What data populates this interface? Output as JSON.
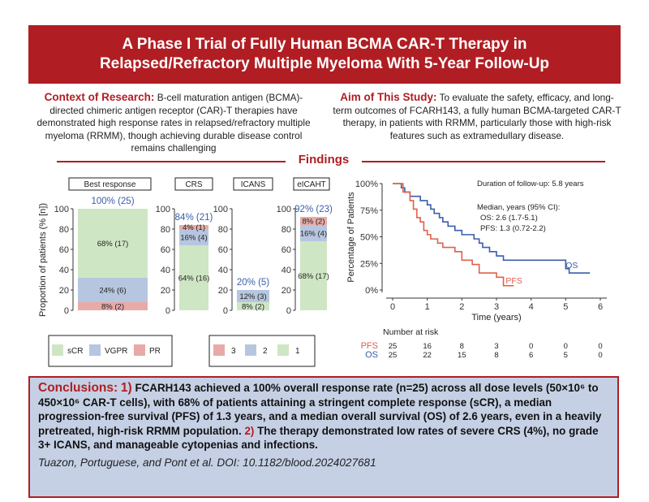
{
  "title": {
    "line1": "A Phase I Trial of Fully Human BCMA CAR-T Therapy in",
    "line2": "Relapsed/Refractory Multiple Myeloma With 5-Year Follow-Up"
  },
  "context": {
    "heading": "Context of Research:",
    "body": "B-cell maturation antigen (BCMA)-directed chimeric antigen receptor (CAR)-T therapies have demonstrated high response rates in relapsed/refractory multiple myeloma (RRMM), though achieving durable disease control remains challenging"
  },
  "aim": {
    "heading": "Aim of This Study:",
    "body": "To evaluate the safety, efficacy, and long-term outcomes of FCARH143, a fully human BCMA-targeted CAR-T therapy, in patients with RRMM, particularly those with high-risk features such as extramedullary disease."
  },
  "findings_label": "Findings",
  "colors": {
    "banner": "#b01e23",
    "scr": "#cfe6c4",
    "vgpr": "#b7c6e0",
    "pr": "#e8aaa6",
    "g3": "#e8aaa6",
    "g2": "#b7c6e0",
    "g1": "#cfe6c4",
    "os": "#3a5ea8",
    "pfs": "#e0604a",
    "conclusion_bg": "#c5d0e4"
  },
  "chart_data": [
    {
      "type": "bar",
      "title": "",
      "ylabel": "Proportion of patients (% [n])",
      "ylim": [
        0,
        100
      ],
      "yticks": [
        "0",
        "20",
        "40",
        "60",
        "80",
        "100"
      ],
      "panels": [
        {
          "strip": "Best response",
          "total_label": "100% (25)",
          "segments": [
            {
              "name": "PR",
              "value": 8,
              "label": "8% (2)"
            },
            {
              "name": "VGPR",
              "value": 24,
              "label": "24% (6)"
            },
            {
              "name": "sCR",
              "value": 68,
              "label": "68% (17)"
            }
          ]
        },
        {
          "strip": "CRS",
          "total_label": "84% (21)",
          "segments": [
            {
              "name": "1",
              "value": 64,
              "label": "64% (16)"
            },
            {
              "name": "2",
              "value": 16,
              "label": "16% (4)"
            },
            {
              "name": "3",
              "value": 4,
              "label": "4% (1)"
            }
          ]
        },
        {
          "strip": "ICANS",
          "total_label": "20% (5)",
          "segments": [
            {
              "name": "1",
              "value": 8,
              "label": "8% (2)"
            },
            {
              "name": "2",
              "value": 12,
              "label": "12% (3)"
            }
          ]
        },
        {
          "strip": "eICAHT",
          "total_label": "92% (23)",
          "segments": [
            {
              "name": "1",
              "value": 68,
              "label": "68% (17)"
            },
            {
              "name": "2",
              "value": 16,
              "label": "16% (4)"
            },
            {
              "name": "3",
              "value": 8,
              "label": "8% (2)"
            }
          ]
        }
      ],
      "legend_response": [
        "sCR",
        "VGPR",
        "PR"
      ],
      "legend_grade": [
        "3",
        "2",
        "1"
      ]
    },
    {
      "type": "line",
      "title": "",
      "xlabel": "Time (years)",
      "ylabel": "Percentage of Patients",
      "xlim": [
        0,
        6
      ],
      "ylim": [
        0,
        100
      ],
      "xticks": [
        "0",
        "1",
        "2",
        "3",
        "4",
        "5",
        "6"
      ],
      "yticks": [
        "0%",
        "25%",
        "50%",
        "75%",
        "100%"
      ],
      "annotations": {
        "followup": "Duration of follow-up: 5.8 years",
        "median_header": "Median, years (95% CI):",
        "os_median": "OS: 2.6 (1.7-5.1)",
        "pfs_median": "PFS: 1.3 (0.72-2.2)"
      },
      "series": [
        {
          "name": "OS",
          "x": [
            0,
            0.25,
            0.35,
            0.5,
            0.6,
            0.8,
            1.0,
            1.1,
            1.2,
            1.35,
            1.45,
            1.6,
            1.7,
            1.8,
            2.0,
            2.2,
            2.35,
            2.5,
            2.6,
            2.7,
            2.8,
            3.0,
            3.2,
            3.5,
            4.0,
            4.6,
            5.0,
            5.1,
            5.7
          ],
          "y": [
            100,
            96,
            92,
            88,
            88,
            84,
            80,
            76,
            72,
            68,
            64,
            60,
            60,
            56,
            52,
            52,
            48,
            44,
            40,
            40,
            36,
            32,
            28,
            28,
            28,
            28,
            20,
            16,
            16
          ]
        },
        {
          "name": "PFS",
          "x": [
            0,
            0.3,
            0.5,
            0.6,
            0.7,
            0.8,
            0.9,
            1.0,
            1.1,
            1.2,
            1.3,
            1.45,
            1.6,
            1.8,
            2.0,
            2.2,
            2.3,
            2.5,
            3.0,
            3.2,
            3.5
          ],
          "y": [
            100,
            92,
            84,
            76,
            68,
            64,
            56,
            52,
            48,
            48,
            44,
            40,
            40,
            36,
            28,
            28,
            24,
            16,
            12,
            4,
            4
          ]
        }
      ],
      "risk_table": {
        "header": "Number at risk",
        "rows": [
          {
            "name": "PFS",
            "values": [
              "25",
              "16",
              "8",
              "3",
              "0",
              "0",
              "0"
            ]
          },
          {
            "name": "OS",
            "values": [
              "25",
              "22",
              "15",
              "8",
              "6",
              "5",
              "0"
            ]
          }
        ]
      }
    }
  ],
  "conclusions": {
    "heading": "Conclusions:",
    "num1": "1)",
    "text1": "FCARH143 achieved a 100% overall response rate (n=25) across all dose levels (50×10⁶ to 450×10⁶ CAR-T cells), with 68% of patients attaining a stringent complete response (sCR), a median progression-free survival (PFS) of 1.3 years, and a median overall survival (OS) of 2.6 years, even in a heavily pretreated, high-risk RRMM population.",
    "num2": "2)",
    "text2": "The therapy demonstrated low rates of severe CRS (4%), no grade 3+ ICANS, and manageable cytopenias and infections.",
    "citation": "Tuazon, Portuguese, and Pont et al. DOI: 10.1182/blood.2024027681"
  }
}
